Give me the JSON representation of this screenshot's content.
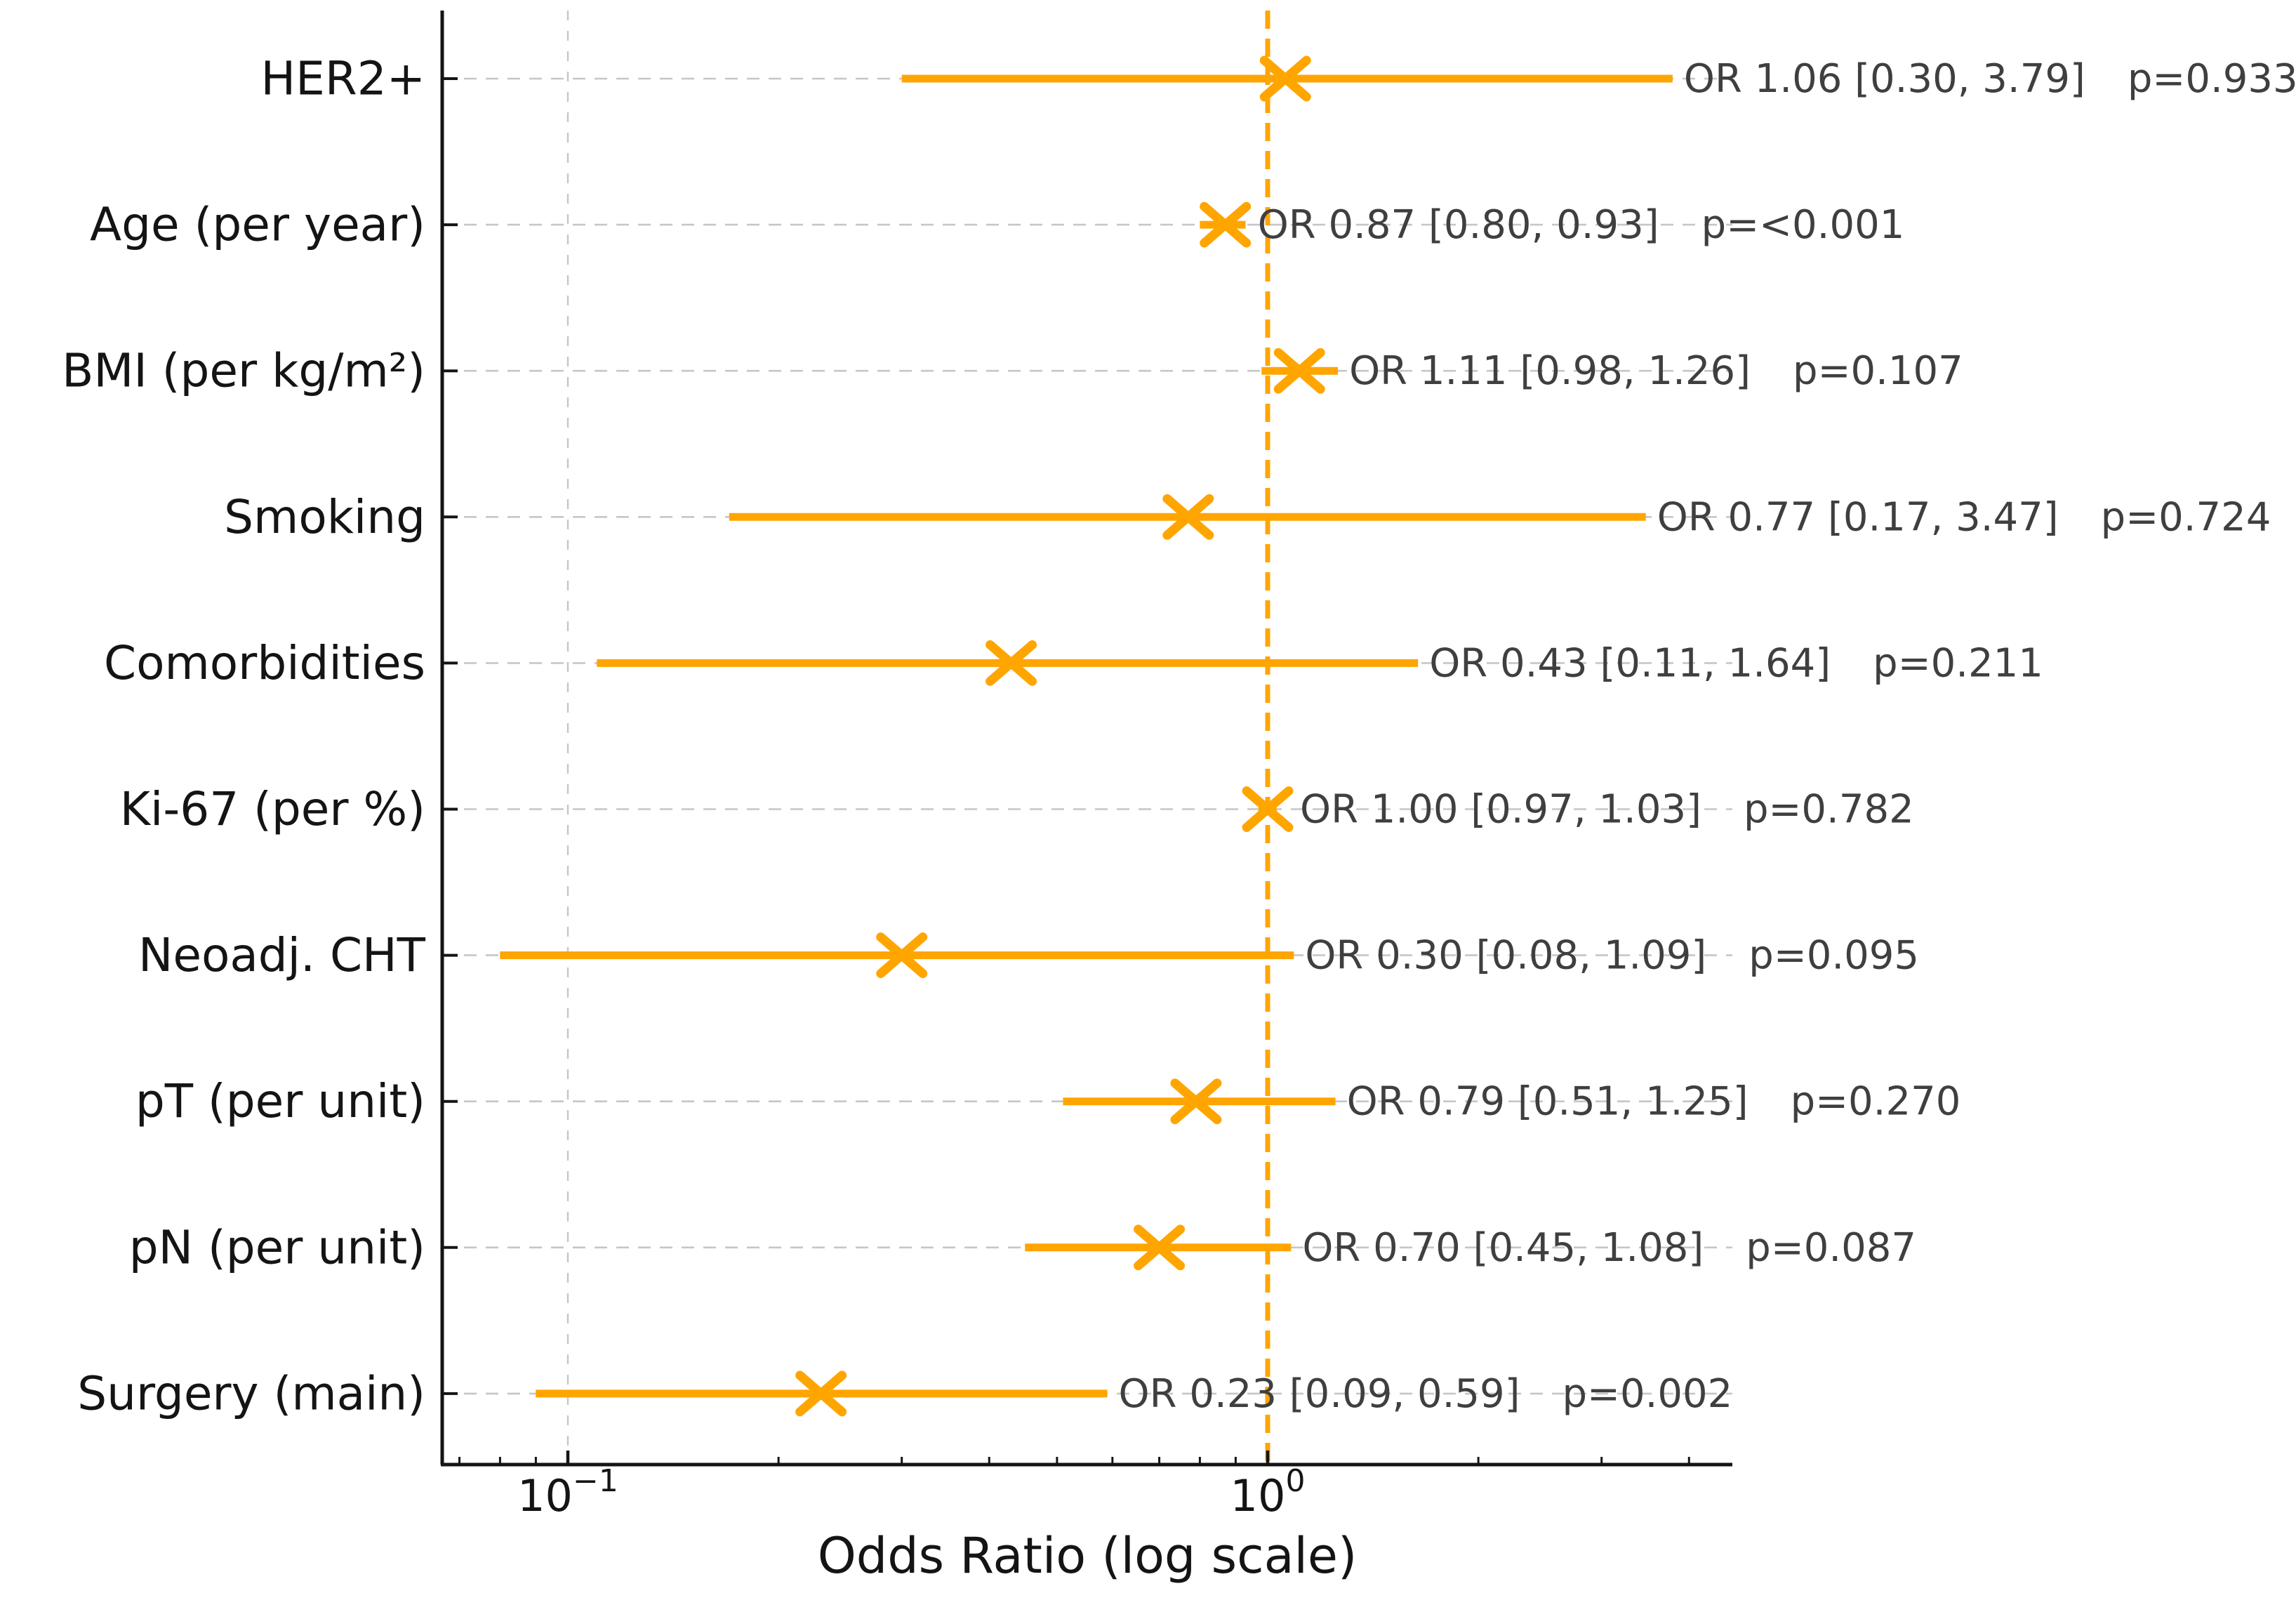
{
  "figure": {
    "background": "#ffffff",
    "accent_color": "#FFA500",
    "annotation_color": "#3f3f3f",
    "label_color": "#141414",
    "grid_color": "#c6c6c6"
  },
  "chart_data": {
    "type": "scatter",
    "variant": "forest-plot",
    "title": "",
    "xlabel": "Odds Ratio (log scale)",
    "x_scale": "log10",
    "xlim": [
      0.066,
      4.6
    ],
    "grid": "dashed horizontal per row, dashed vertical at 0.1",
    "reference_line_x": 1.0,
    "vertical_gridline_x": 0.1,
    "x_major_ticks": [
      {
        "value": 0.1,
        "base": "10",
        "exp": "−1"
      },
      {
        "value": 1.0,
        "base": "10",
        "exp": "0"
      }
    ],
    "x_minor_ticks": [
      0.07,
      0.08,
      0.09,
      0.2,
      0.3,
      0.4,
      0.5,
      0.6,
      0.7,
      0.8,
      0.9,
      2,
      3,
      4
    ],
    "rows": [
      {
        "label": "HER2+",
        "or": 1.06,
        "lo": 0.3,
        "hi": 3.79,
        "p": "0.933",
        "annotation": "OR 1.06 [0.30, 3.79]",
        "p_label": "p=0.933"
      },
      {
        "label": "Age (per year)",
        "or": 0.87,
        "lo": 0.8,
        "hi": 0.93,
        "p": "<0.001",
        "annotation": "OR 0.87 [0.80, 0.93]",
        "p_label": "p=<0.001"
      },
      {
        "label": "BMI (per kg/m²)",
        "or": 1.11,
        "lo": 0.98,
        "hi": 1.26,
        "p": "0.107",
        "annotation": "OR 1.11 [0.98, 1.26]",
        "p_label": "p=0.107"
      },
      {
        "label": "Smoking",
        "or": 0.77,
        "lo": 0.17,
        "hi": 3.47,
        "p": "0.724",
        "annotation": "OR 0.77 [0.17, 3.47]",
        "p_label": "p=0.724"
      },
      {
        "label": "Comorbidities",
        "or": 0.43,
        "lo": 0.11,
        "hi": 1.64,
        "p": "0.211",
        "annotation": "OR 0.43 [0.11, 1.64]",
        "p_label": "p=0.211"
      },
      {
        "label": "Ki-67 (per %)",
        "or": 1.0,
        "lo": 0.97,
        "hi": 1.03,
        "p": "0.782",
        "annotation": "OR 1.00 [0.97, 1.03]",
        "p_label": "p=0.782"
      },
      {
        "label": "Neoadj. CHT",
        "or": 0.3,
        "lo": 0.08,
        "hi": 1.09,
        "p": "0.095",
        "annotation": "OR 0.30 [0.08, 1.09]",
        "p_label": "p=0.095"
      },
      {
        "label": "pT (per unit)",
        "or": 0.79,
        "lo": 0.51,
        "hi": 1.25,
        "p": "0.270",
        "annotation": "OR 0.79 [0.51, 1.25]",
        "p_label": "p=0.270"
      },
      {
        "label": "pN (per unit)",
        "or": 0.7,
        "lo": 0.45,
        "hi": 1.08,
        "p": "0.087",
        "annotation": "OR 0.70 [0.45, 1.08]",
        "p_label": "p=0.087"
      },
      {
        "label": "Surgery (main)",
        "or": 0.23,
        "lo": 0.09,
        "hi": 0.59,
        "p": "0.002",
        "annotation": "OR 0.23 [0.09, 0.59]",
        "p_label": "p=0.002"
      }
    ]
  }
}
